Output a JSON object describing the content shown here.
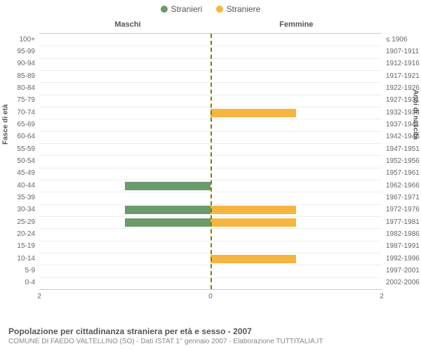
{
  "legend": {
    "male": {
      "label": "Stranieri",
      "color": "#6b9a6b"
    },
    "female": {
      "label": "Straniere",
      "color": "#f5b641"
    }
  },
  "columns": {
    "left": "Maschi",
    "right": "Femmine"
  },
  "y_left_title": "Fasce di età",
  "y_right_title": "Anni di nascita",
  "x_max": 2,
  "x_ticks": {
    "left_outer": "2",
    "center": "0",
    "right_outer": "2"
  },
  "chart": {
    "type": "pyramid-bar",
    "background_color": "#ffffff",
    "grid_color": "#eeeeee",
    "axis_color": "#cccccc",
    "center_line_color": "#808000",
    "label_color": "#666666",
    "label_fontsize": 10
  },
  "rows": [
    {
      "age": "100+",
      "years": "≤ 1906",
      "m": 0,
      "f": 0
    },
    {
      "age": "95-99",
      "years": "1907-1911",
      "m": 0,
      "f": 0
    },
    {
      "age": "90-94",
      "years": "1912-1916",
      "m": 0,
      "f": 0
    },
    {
      "age": "85-89",
      "years": "1917-1921",
      "m": 0,
      "f": 0
    },
    {
      "age": "80-84",
      "years": "1922-1926",
      "m": 0,
      "f": 0
    },
    {
      "age": "75-79",
      "years": "1927-1931",
      "m": 0,
      "f": 0
    },
    {
      "age": "70-74",
      "years": "1932-1936",
      "m": 0,
      "f": 1
    },
    {
      "age": "65-69",
      "years": "1937-1941",
      "m": 0,
      "f": 0
    },
    {
      "age": "60-64",
      "years": "1942-1946",
      "m": 0,
      "f": 0
    },
    {
      "age": "55-59",
      "years": "1947-1951",
      "m": 0,
      "f": 0
    },
    {
      "age": "50-54",
      "years": "1952-1956",
      "m": 0,
      "f": 0
    },
    {
      "age": "45-49",
      "years": "1957-1961",
      "m": 0,
      "f": 0
    },
    {
      "age": "40-44",
      "years": "1962-1966",
      "m": 1,
      "f": 0
    },
    {
      "age": "35-39",
      "years": "1967-1971",
      "m": 0,
      "f": 0
    },
    {
      "age": "30-34",
      "years": "1972-1976",
      "m": 1,
      "f": 1
    },
    {
      "age": "25-29",
      "years": "1977-1981",
      "m": 1,
      "f": 1
    },
    {
      "age": "20-24",
      "years": "1982-1986",
      "m": 0,
      "f": 0
    },
    {
      "age": "15-19",
      "years": "1987-1991",
      "m": 0,
      "f": 0
    },
    {
      "age": "10-14",
      "years": "1992-1996",
      "m": 0,
      "f": 1
    },
    {
      "age": "5-9",
      "years": "1997-2001",
      "m": 0,
      "f": 0
    },
    {
      "age": "0-4",
      "years": "2002-2006",
      "m": 0,
      "f": 0
    }
  ],
  "footer": {
    "title": "Popolazione per cittadinanza straniera per età e sesso - 2007",
    "subtitle": "COMUNE DI FAEDO VALTELLINO (SO) - Dati ISTAT 1° gennaio 2007 - Elaborazione TUTTITALIA.IT"
  }
}
